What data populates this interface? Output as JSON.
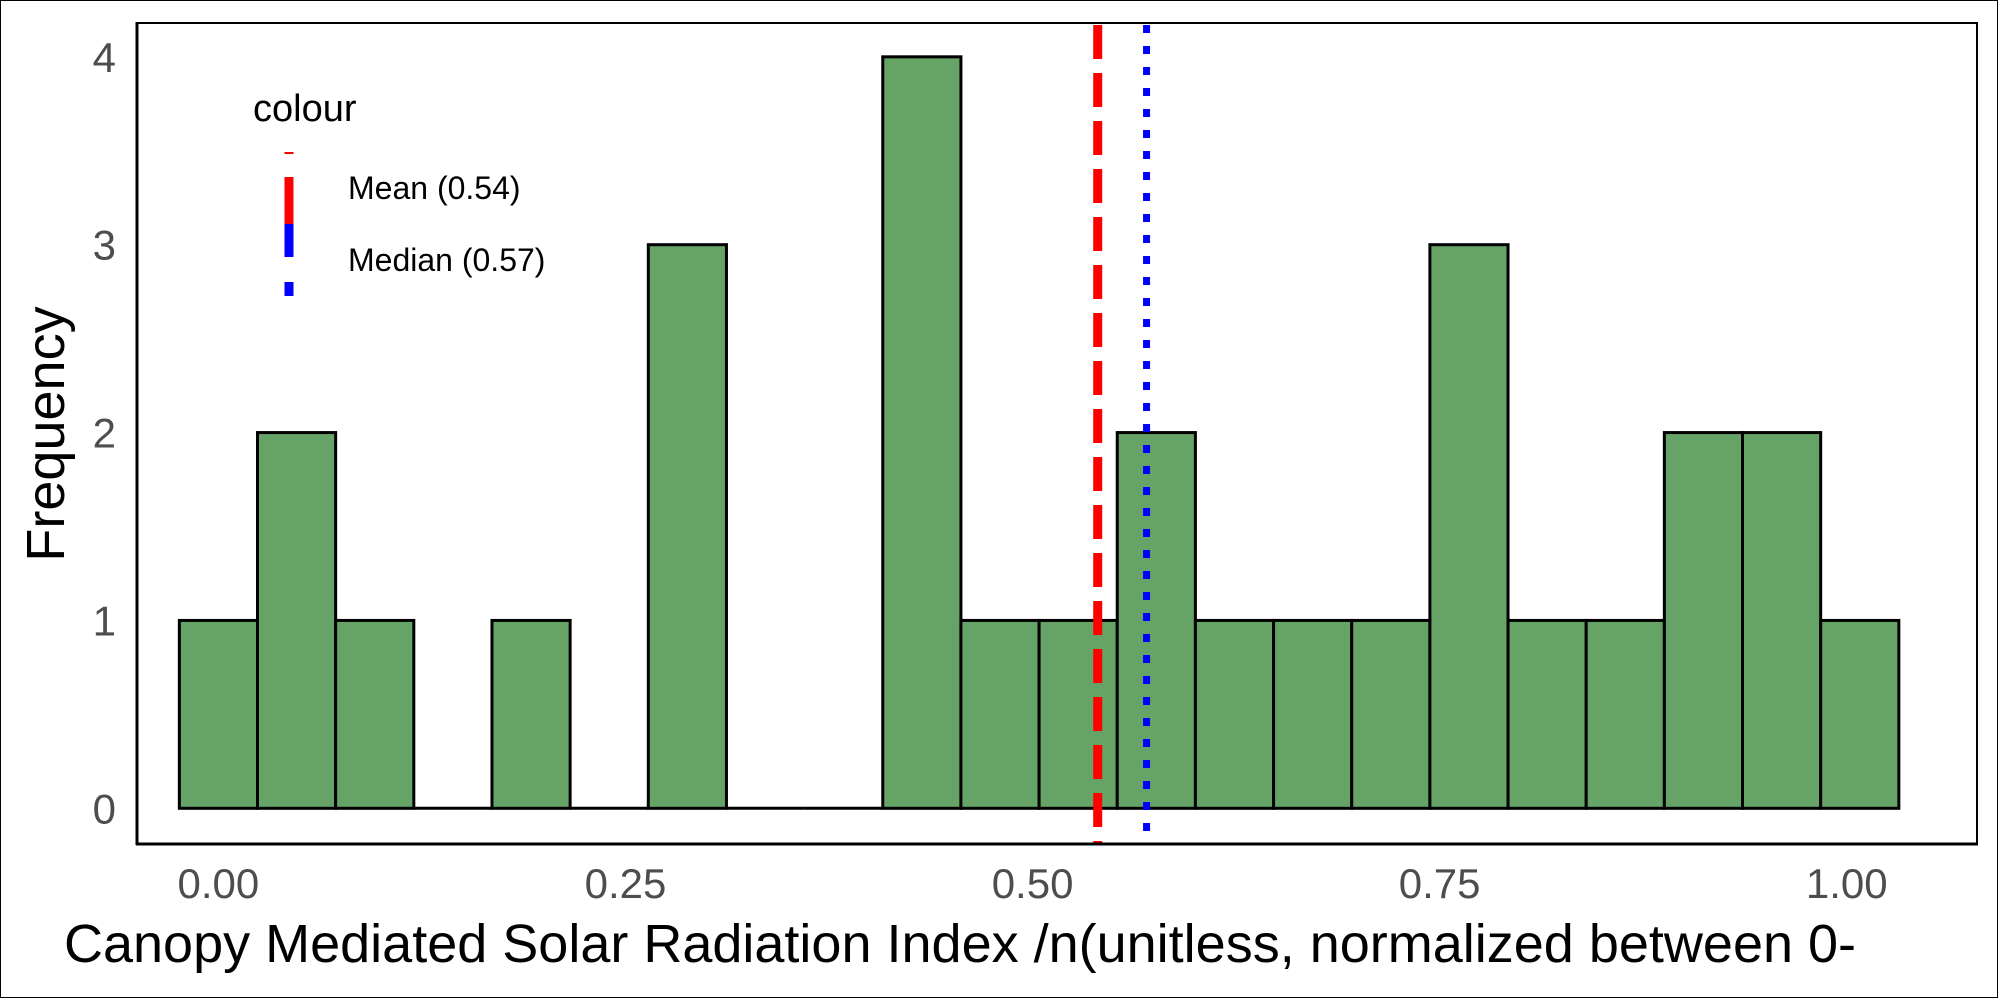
{
  "chart_data": {
    "type": "bar",
    "subtype": "histogram",
    "xlabel": "Canopy Mediated Solar Radiation Index /n(unitless, normalized between 0-",
    "ylabel": "Frequency",
    "xlim": [
      -0.05,
      1.08
    ],
    "ylim": [
      -0.19,
      4.18
    ],
    "x_ticks": [
      {
        "value": 0.0,
        "label": "0.00"
      },
      {
        "value": 0.25,
        "label": "0.25"
      },
      {
        "value": 0.5,
        "label": "0.50"
      },
      {
        "value": 0.75,
        "label": "0.75"
      },
      {
        "value": 1.0,
        "label": "1.00"
      }
    ],
    "y_ticks": [
      {
        "value": 0,
        "label": "0"
      },
      {
        "value": 1,
        "label": "1"
      },
      {
        "value": 2,
        "label": "2"
      },
      {
        "value": 3,
        "label": "3"
      },
      {
        "value": 4,
        "label": "4"
      }
    ],
    "bin_width": 0.048,
    "bins": [
      {
        "x0": -0.024,
        "x1": 0.024,
        "count": 1
      },
      {
        "x0": 0.024,
        "x1": 0.072,
        "count": 2
      },
      {
        "x0": 0.072,
        "x1": 0.12,
        "count": 1
      },
      {
        "x0": 0.12,
        "x1": 0.168,
        "count": 0
      },
      {
        "x0": 0.168,
        "x1": 0.216,
        "count": 1
      },
      {
        "x0": 0.216,
        "x1": 0.264,
        "count": 0
      },
      {
        "x0": 0.264,
        "x1": 0.312,
        "count": 3
      },
      {
        "x0": 0.312,
        "x1": 0.36,
        "count": 0
      },
      {
        "x0": 0.36,
        "x1": 0.408,
        "count": 0
      },
      {
        "x0": 0.408,
        "x1": 0.456,
        "count": 4
      },
      {
        "x0": 0.456,
        "x1": 0.504,
        "count": 1
      },
      {
        "x0": 0.504,
        "x1": 0.552,
        "count": 1
      },
      {
        "x0": 0.552,
        "x1": 0.6,
        "count": 2
      },
      {
        "x0": 0.6,
        "x1": 0.648,
        "count": 1
      },
      {
        "x0": 0.648,
        "x1": 0.696,
        "count": 1
      },
      {
        "x0": 0.696,
        "x1": 0.744,
        "count": 1
      },
      {
        "x0": 0.744,
        "x1": 0.792,
        "count": 3
      },
      {
        "x0": 0.792,
        "x1": 0.84,
        "count": 1
      },
      {
        "x0": 0.84,
        "x1": 0.888,
        "count": 1
      },
      {
        "x0": 0.888,
        "x1": 0.936,
        "count": 2
      },
      {
        "x0": 0.936,
        "x1": 0.984,
        "count": 2
      },
      {
        "x0": 0.984,
        "x1": 1.032,
        "count": 1
      }
    ],
    "bar_fill": "#66a366",
    "bar_stroke": "#000000",
    "reference_lines": [
      {
        "name": "Mean (0.54)",
        "value": 0.54,
        "color": "#ff0000",
        "style": "dashed"
      },
      {
        "name": "Median (0.57)",
        "value": 0.57,
        "color": "#0000ff",
        "style": "dotted"
      }
    ],
    "legend": {
      "title": "colour",
      "position": "top-left"
    },
    "grid": false
  }
}
